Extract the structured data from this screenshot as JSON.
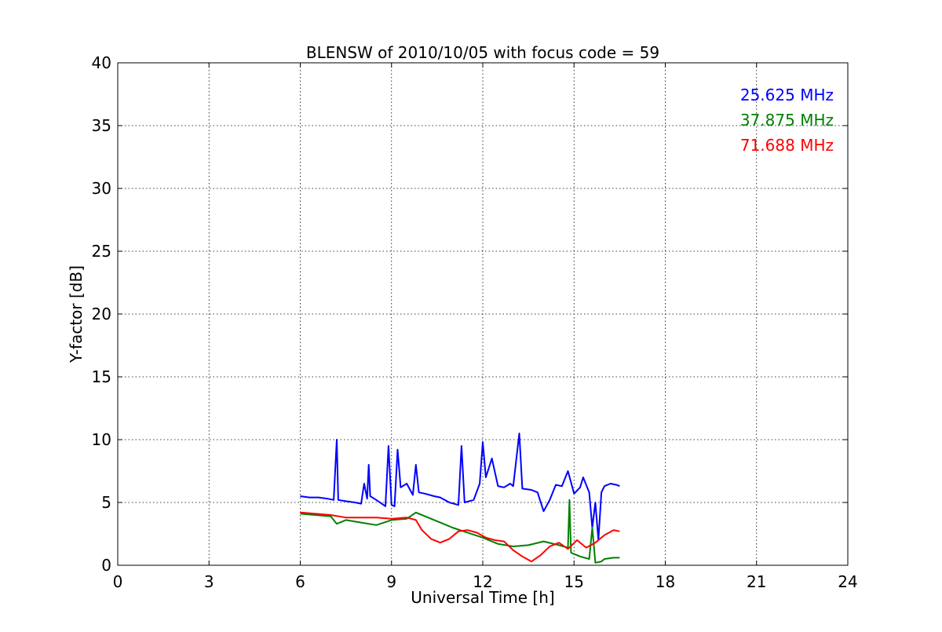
{
  "chart_data": {
    "type": "line",
    "title": "BLENSW of 2010/10/05 with focus code = 59",
    "xlabel": "Universal Time [h]",
    "ylabel": "Y-factor [dB]",
    "xlim": [
      0,
      24
    ],
    "ylim": [
      0,
      40
    ],
    "xticks": [
      0,
      3,
      6,
      9,
      12,
      15,
      18,
      21,
      24
    ],
    "yticks": [
      0,
      5,
      10,
      15,
      20,
      25,
      30,
      35,
      40
    ],
    "grid": true,
    "legend_placement": "top-right",
    "series": [
      {
        "name": "25.625 MHz",
        "color": "#0000ff",
        "points": [
          [
            6.0,
            5.5
          ],
          [
            6.3,
            5.4
          ],
          [
            6.6,
            5.4
          ],
          [
            6.9,
            5.3
          ],
          [
            7.1,
            5.2
          ],
          [
            7.2,
            10.0
          ],
          [
            7.25,
            5.2
          ],
          [
            7.5,
            5.1
          ],
          [
            7.8,
            5.0
          ],
          [
            8.0,
            4.9
          ],
          [
            8.1,
            6.5
          ],
          [
            8.2,
            5.3
          ],
          [
            8.25,
            8.0
          ],
          [
            8.3,
            5.5
          ],
          [
            8.5,
            5.2
          ],
          [
            8.8,
            4.7
          ],
          [
            8.9,
            9.5
          ],
          [
            9.0,
            4.8
          ],
          [
            9.1,
            4.7
          ],
          [
            9.2,
            9.2
          ],
          [
            9.3,
            6.2
          ],
          [
            9.5,
            6.5
          ],
          [
            9.7,
            5.6
          ],
          [
            9.8,
            8.0
          ],
          [
            9.9,
            5.8
          ],
          [
            10.1,
            5.7
          ],
          [
            10.4,
            5.5
          ],
          [
            10.6,
            5.4
          ],
          [
            10.9,
            5.0
          ],
          [
            11.2,
            4.8
          ],
          [
            11.3,
            9.5
          ],
          [
            11.4,
            5.0
          ],
          [
            11.7,
            5.2
          ],
          [
            11.9,
            6.5
          ],
          [
            12.0,
            9.8
          ],
          [
            12.1,
            7.0
          ],
          [
            12.3,
            8.5
          ],
          [
            12.5,
            6.3
          ],
          [
            12.7,
            6.2
          ],
          [
            12.9,
            6.5
          ],
          [
            13.0,
            6.3
          ],
          [
            13.2,
            10.5
          ],
          [
            13.3,
            6.1
          ],
          [
            13.6,
            6.0
          ],
          [
            13.8,
            5.8
          ],
          [
            14.0,
            4.3
          ],
          [
            14.2,
            5.2
          ],
          [
            14.4,
            6.4
          ],
          [
            14.6,
            6.3
          ],
          [
            14.8,
            7.5
          ],
          [
            15.0,
            5.7
          ],
          [
            15.2,
            6.2
          ],
          [
            15.3,
            7.0
          ],
          [
            15.5,
            5.8
          ],
          [
            15.6,
            3.0
          ],
          [
            15.7,
            5.0
          ],
          [
            15.8,
            2.0
          ],
          [
            15.9,
            5.8
          ],
          [
            16.0,
            6.3
          ],
          [
            16.2,
            6.5
          ],
          [
            16.4,
            6.4
          ],
          [
            16.5,
            6.3
          ]
        ]
      },
      {
        "name": "37.875 MHz",
        "color": "#008000",
        "points": [
          [
            6.0,
            4.1
          ],
          [
            6.5,
            4.0
          ],
          [
            7.0,
            3.9
          ],
          [
            7.2,
            3.3
          ],
          [
            7.5,
            3.6
          ],
          [
            8.0,
            3.4
          ],
          [
            8.5,
            3.2
          ],
          [
            9.0,
            3.6
          ],
          [
            9.5,
            3.7
          ],
          [
            9.8,
            4.2
          ],
          [
            10.2,
            3.8
          ],
          [
            10.6,
            3.4
          ],
          [
            11.0,
            3.0
          ],
          [
            11.5,
            2.6
          ],
          [
            12.0,
            2.2
          ],
          [
            12.5,
            1.7
          ],
          [
            13.0,
            1.5
          ],
          [
            13.5,
            1.6
          ],
          [
            14.0,
            1.9
          ],
          [
            14.5,
            1.6
          ],
          [
            14.8,
            1.4
          ],
          [
            14.85,
            5.2
          ],
          [
            14.9,
            1.0
          ],
          [
            15.2,
            0.7
          ],
          [
            15.5,
            0.5
          ],
          [
            15.6,
            3.0
          ],
          [
            15.7,
            0.2
          ],
          [
            15.9,
            0.3
          ],
          [
            16.0,
            0.5
          ],
          [
            16.3,
            0.6
          ],
          [
            16.5,
            0.6
          ]
        ]
      },
      {
        "name": "71.688 MHz",
        "color": "#ff0000",
        "points": [
          [
            6.0,
            4.2
          ],
          [
            6.5,
            4.1
          ],
          [
            7.0,
            4.0
          ],
          [
            7.5,
            3.8
          ],
          [
            8.0,
            3.8
          ],
          [
            8.5,
            3.8
          ],
          [
            9.0,
            3.7
          ],
          [
            9.5,
            3.8
          ],
          [
            9.8,
            3.6
          ],
          [
            10.0,
            2.8
          ],
          [
            10.3,
            2.1
          ],
          [
            10.6,
            1.8
          ],
          [
            10.9,
            2.1
          ],
          [
            11.2,
            2.7
          ],
          [
            11.5,
            2.8
          ],
          [
            11.8,
            2.6
          ],
          [
            12.1,
            2.2
          ],
          [
            12.4,
            2.0
          ],
          [
            12.7,
            1.9
          ],
          [
            13.0,
            1.2
          ],
          [
            13.3,
            0.7
          ],
          [
            13.6,
            0.3
          ],
          [
            13.9,
            0.8
          ],
          [
            14.2,
            1.5
          ],
          [
            14.5,
            1.8
          ],
          [
            14.8,
            1.3
          ],
          [
            15.1,
            2.0
          ],
          [
            15.4,
            1.4
          ],
          [
            15.7,
            1.8
          ],
          [
            16.0,
            2.4
          ],
          [
            16.3,
            2.8
          ],
          [
            16.5,
            2.7
          ]
        ]
      }
    ]
  }
}
